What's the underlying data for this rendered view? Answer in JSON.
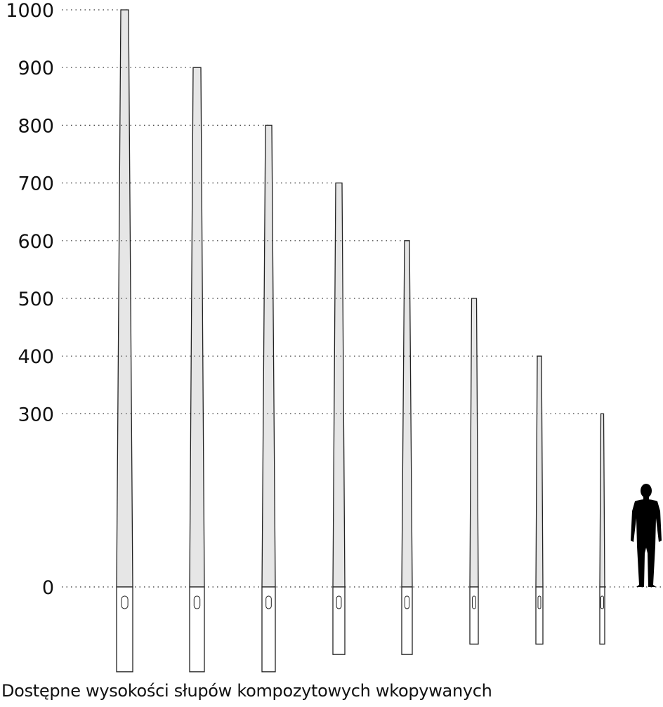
{
  "chart_data": {
    "type": "bar",
    "title": "Dostępne wysokości słupów kompozytowych wkopywanych",
    "y_ticks": [
      "0",
      "300",
      "400",
      "500",
      "600",
      "700",
      "800",
      "900",
      "1000"
    ],
    "tick_values": [
      0,
      300,
      400,
      500,
      600,
      700,
      800,
      900,
      1000
    ],
    "ylim": [
      0,
      1000
    ],
    "poles": [
      {
        "height": 1000,
        "embed": 147
      },
      {
        "height": 900,
        "embed": 147
      },
      {
        "height": 800,
        "embed": 147
      },
      {
        "height": 700,
        "embed": 117
      },
      {
        "height": 600,
        "embed": 117
      },
      {
        "height": 500,
        "embed": 99
      },
      {
        "height": 400,
        "embed": 99
      },
      {
        "height": 300,
        "embed": 99
      }
    ],
    "human_height": 180,
    "colors": {
      "pole_fill": "#e6e6e6",
      "outline": "#222222",
      "grid": "#333333",
      "human": "#000000"
    }
  }
}
